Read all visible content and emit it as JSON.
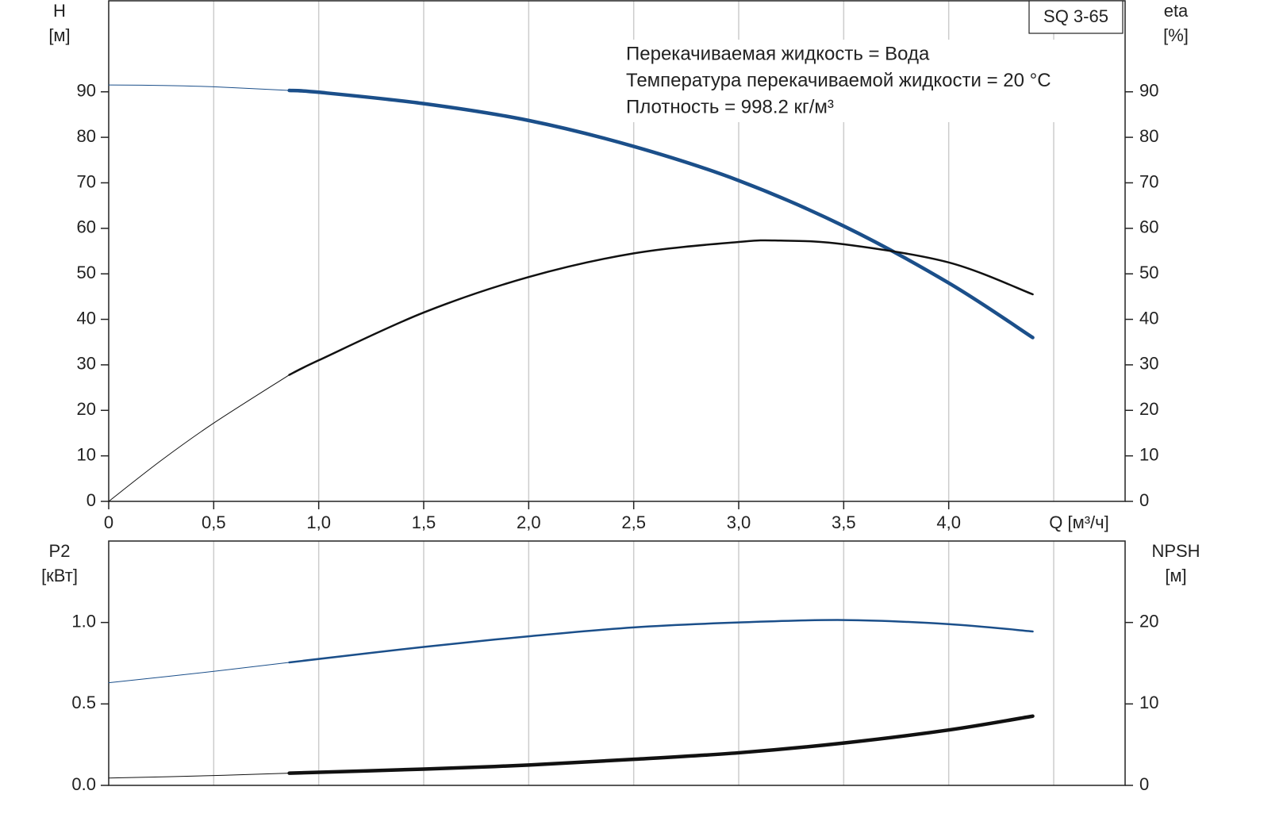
{
  "chart_data": [
    {
      "type": "line",
      "ylabel": "H",
      "yunit": "[м]",
      "y2label": "eta",
      "y2unit": "[%]",
      "xlabel": "Q [м³/ч]",
      "model": "SQ 3-65",
      "notes": [
        "Перекачиваемая жидкость = Вода",
        "Температура перекачиваемой жидкости = 20 °C",
        "Плотность = 998.2 кг/м³"
      ],
      "xlim": [
        0,
        4.84
      ],
      "ylim": [
        0,
        110
      ],
      "y2lim": [
        0,
        110
      ],
      "xticks": [
        0,
        {
          "value": 0.5,
          "label": "0,5"
        },
        {
          "value": 1.0,
          "label": "1,0"
        },
        {
          "value": 1.5,
          "label": "1,5"
        },
        {
          "value": 2.0,
          "label": "2,0"
        },
        {
          "value": 2.5,
          "label": "2,5"
        },
        {
          "value": 3.0,
          "label": "3,0"
        },
        {
          "value": 3.5,
          "label": "3,5"
        },
        {
          "value": 4.0,
          "label": "4,0"
        }
      ],
      "xgrid": [
        0.5,
        1.0,
        1.5,
        2.0,
        2.5,
        3.0,
        3.5,
        4.0,
        4.5
      ],
      "yticks": [
        0,
        10,
        20,
        30,
        40,
        50,
        60,
        70,
        80,
        90
      ],
      "y2ticks": [
        0,
        10,
        20,
        30,
        40,
        50,
        60,
        70,
        80,
        90
      ],
      "series": [
        {
          "color": "#1b4f8a",
          "weight": "thin",
          "x": [
            0,
            0.25,
            0.5,
            0.86
          ],
          "values": [
            91.5,
            91.4,
            91.1,
            90.3
          ]
        },
        {
          "color": "#1b4f8a",
          "weight": "bold",
          "x": [
            0.86,
            1.0,
            1.5,
            2.0,
            2.5,
            3.0,
            3.5,
            4.0,
            4.4
          ],
          "values": [
            90.3,
            89.9,
            87.4,
            83.7,
            78,
            70.5,
            60.5,
            48,
            36
          ]
        },
        {
          "color": "#111111",
          "weight": "thin",
          "axis": "y2",
          "x": [
            0,
            0.25,
            0.5,
            0.86
          ],
          "values": [
            0,
            9,
            17.2,
            27.8
          ]
        },
        {
          "color": "#111111",
          "weight": "medium",
          "axis": "y2",
          "x": [
            0.86,
            1.0,
            1.5,
            2.0,
            2.5,
            3.0,
            3.2,
            3.5,
            4.0,
            4.4
          ],
          "values": [
            27.8,
            31,
            41.5,
            49.3,
            54.5,
            57,
            57.3,
            56.5,
            52.5,
            45.5
          ]
        }
      ]
    },
    {
      "type": "line",
      "ylabel": "P2",
      "yunit": "[кВт]",
      "y2label": "NPSH",
      "y2unit": "[м]",
      "xlim": [
        0,
        4.84
      ],
      "ylim": [
        0,
        1.5
      ],
      "y2lim": [
        0,
        30
      ],
      "xgrid": [
        0.5,
        1.0,
        1.5,
        2.0,
        2.5,
        3.0,
        3.5,
        4.0,
        4.5
      ],
      "yticks": [
        {
          "value": 0,
          "label": "0.0"
        },
        {
          "value": 0.5,
          "label": "0.5"
        },
        {
          "value": 1.0,
          "label": "1.0"
        }
      ],
      "y2ticks": [
        0,
        10,
        20
      ],
      "series": [
        {
          "color": "#1b4f8a",
          "weight": "thin",
          "x": [
            0,
            0.5,
            0.86
          ],
          "values": [
            0.63,
            0.7,
            0.755
          ]
        },
        {
          "color": "#1b4f8a",
          "weight": "medium",
          "x": [
            0.86,
            1.5,
            2.0,
            2.5,
            3.0,
            3.5,
            4.0,
            4.4
          ],
          "values": [
            0.755,
            0.85,
            0.915,
            0.97,
            1.0,
            1.015,
            0.99,
            0.945
          ]
        },
        {
          "color": "#111111",
          "weight": "thin",
          "axis": "y2",
          "x": [
            0,
            0.5,
            0.86
          ],
          "values": [
            0.9,
            1.2,
            1.5
          ]
        },
        {
          "color": "#111111",
          "weight": "bold",
          "axis": "y2",
          "x": [
            0.86,
            1.5,
            2.0,
            2.5,
            3.0,
            3.5,
            4.0,
            4.4
          ],
          "values": [
            1.5,
            2.0,
            2.5,
            3.2,
            4.0,
            5.2,
            6.8,
            8.5
          ]
        }
      ]
    }
  ]
}
